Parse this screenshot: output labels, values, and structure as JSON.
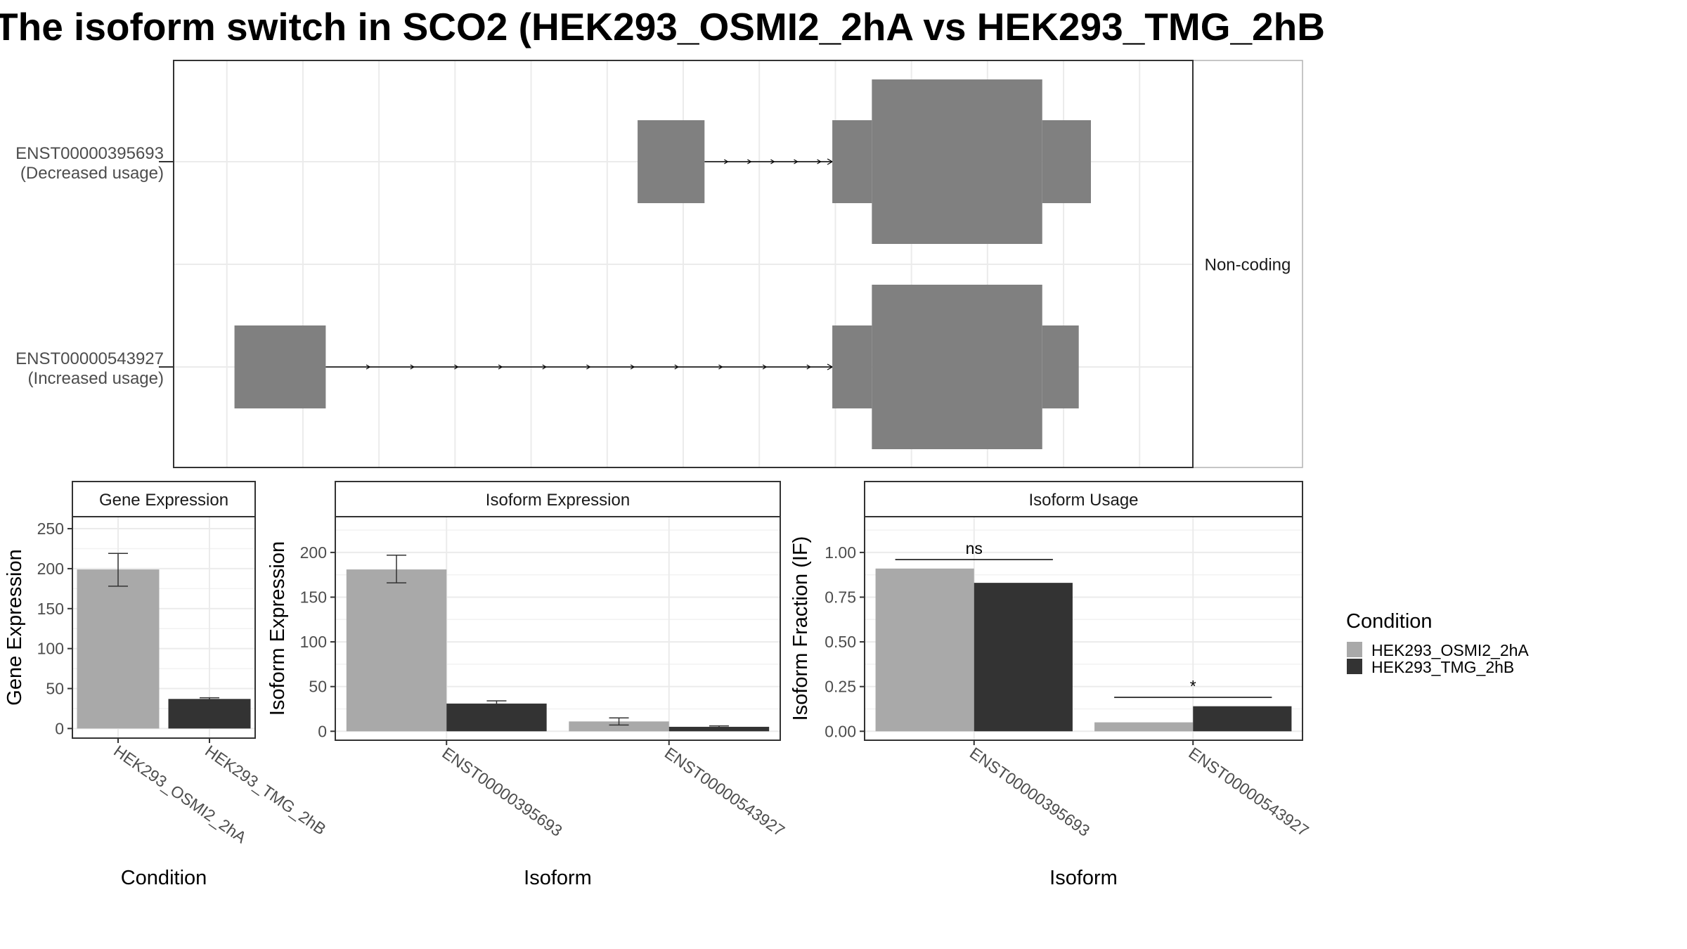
{
  "title": "The isoform switch in SCO2 (HEK293_OSMI2_2hA vs HEK293_TMG_2hB",
  "colors": {
    "cond1": "#a9a9a9",
    "cond2": "#333333",
    "exon": "#808080",
    "grid": "#ebebeb",
    "frame": "#333333",
    "strip_bg": "#ffffff",
    "text": "#000000",
    "axis_text": "#4d4d4d"
  },
  "legend": {
    "title": "Condition",
    "items": [
      "HEK293_OSMI2_2hA",
      "HEK293_TMG_2hB"
    ]
  },
  "chart_data": [
    {
      "type": "gene-structure",
      "facet_label": "Non-coding",
      "transcripts": [
        {
          "name": "ENST00000395693",
          "usage": "(Decreased usage)",
          "exons": [
            {
              "start": 27,
              "end": 31.4,
              "size": "small"
            },
            {
              "start": 39.8,
              "end": 42.4,
              "size": "small"
            },
            {
              "start": 42.4,
              "end": 53.6,
              "size": "large"
            },
            {
              "start": 53.6,
              "end": 56.8,
              "size": "small"
            }
          ],
          "intron_arrow_count": 5
        },
        {
          "name": "ENST00000543927",
          "usage": "(Increased usage)",
          "exons": [
            {
              "start": 0.5,
              "end": 6.5,
              "size": "small"
            },
            {
              "start": 39.8,
              "end": 42.4,
              "size": "small"
            },
            {
              "start": 42.4,
              "end": 53.6,
              "size": "large"
            },
            {
              "start": 53.6,
              "end": 56,
              "size": "small"
            }
          ],
          "intron_arrow_count": 11
        }
      ]
    },
    {
      "type": "bar",
      "panel_title": "Gene Expression",
      "xlabel": "Condition",
      "ylabel": "Gene Expression",
      "ylim": [
        -12,
        265
      ],
      "yticks": [
        0,
        50,
        100,
        150,
        200,
        250
      ],
      "categories": [
        "HEK293_OSMI2_2hA",
        "HEK293_TMG_2hB"
      ],
      "values": [
        199,
        37
      ],
      "errors": [
        [
          178,
          219
        ],
        [
          35.5,
          38.5
        ]
      ],
      "grid": true
    },
    {
      "type": "bar",
      "panel_title": "Isoform Expression",
      "xlabel": "Isoform",
      "ylabel": "Isoform Expression",
      "ylim": [
        -10,
        240
      ],
      "yticks": [
        0,
        50,
        100,
        150,
        200
      ],
      "categories": [
        "ENST00000395693",
        "ENST00000543927"
      ],
      "series": [
        {
          "name": "HEK293_OSMI2_2hA",
          "values": [
            181,
            11
          ],
          "errors": [
            [
              166,
              197
            ],
            [
              7,
              15
            ]
          ]
        },
        {
          "name": "HEK293_TMG_2hB",
          "values": [
            31,
            5
          ],
          "errors": [
            [
              28,
              34
            ],
            [
              4,
              6
            ]
          ]
        }
      ],
      "grid": true
    },
    {
      "type": "bar",
      "panel_title": "Isoform Usage",
      "xlabel": "Isoform",
      "ylabel": "Isoform Fraction (IF)",
      "ylim": [
        -0.05,
        1.2
      ],
      "yticks": [
        0.0,
        0.25,
        0.5,
        0.75,
        1.0
      ],
      "ytick_labels": [
        "0.00",
        "0.25",
        "0.50",
        "0.75",
        "1.00"
      ],
      "categories": [
        "ENST00000395693",
        "ENST00000543927"
      ],
      "series": [
        {
          "name": "HEK293_OSMI2_2hA",
          "values": [
            0.91,
            0.05
          ]
        },
        {
          "name": "HEK293_TMG_2hB",
          "values": [
            0.83,
            0.14
          ]
        }
      ],
      "significance": [
        {
          "category_index": 0,
          "label": "ns",
          "y": 0.96
        },
        {
          "category_index": 1,
          "label": "*",
          "y": 0.19
        }
      ],
      "grid": true
    }
  ]
}
